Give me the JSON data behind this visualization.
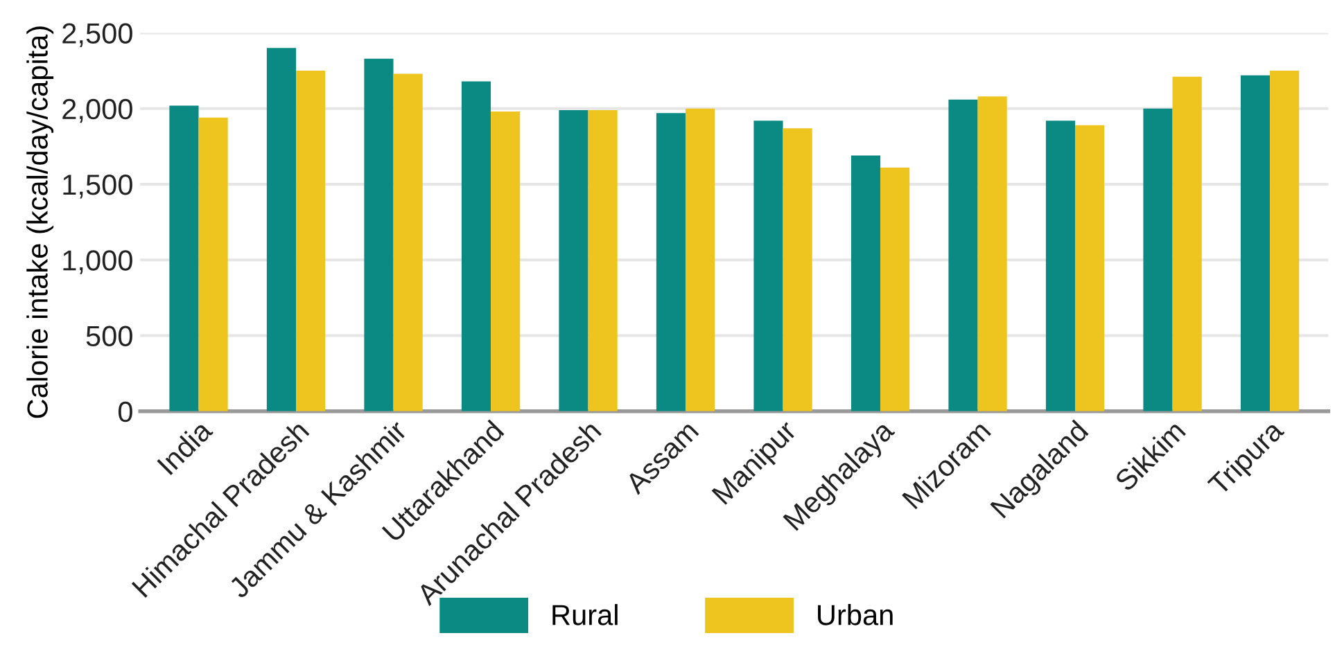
{
  "chart_data": {
    "type": "bar",
    "ylabel": "Calorie intake (kcal/day/capita)",
    "categories": [
      "India",
      "Himachal Pradesh",
      "Jammu & Kashmir",
      "Uttarakhand",
      "Arunachal Pradesh",
      "Assam",
      "Manipur",
      "Meghalaya",
      "Mizoram",
      "Nagaland",
      "Sikkim",
      "Tripura"
    ],
    "series": [
      {
        "name": "Rural",
        "color": "#0b8a84",
        "values": [
          2020,
          2400,
          2330,
          2180,
          1990,
          1970,
          1920,
          1690,
          2060,
          1920,
          2000,
          2220
        ]
      },
      {
        "name": "Urban",
        "color": "#eec41e",
        "values": [
          1940,
          2250,
          2230,
          1980,
          1990,
          2000,
          1870,
          1610,
          2080,
          1890,
          2210,
          2250
        ]
      }
    ],
    "ylim": [
      0,
      2500
    ],
    "yticks": [
      {
        "value": 0,
        "label": "0"
      },
      {
        "value": 500,
        "label": "500"
      },
      {
        "value": 1000,
        "label": "1,000"
      },
      {
        "value": 1500,
        "label": "1,500"
      },
      {
        "value": 2000,
        "label": "2,000"
      },
      {
        "value": 2500,
        "label": "2,500"
      }
    ],
    "grid": "y",
    "legend": "bottom"
  }
}
